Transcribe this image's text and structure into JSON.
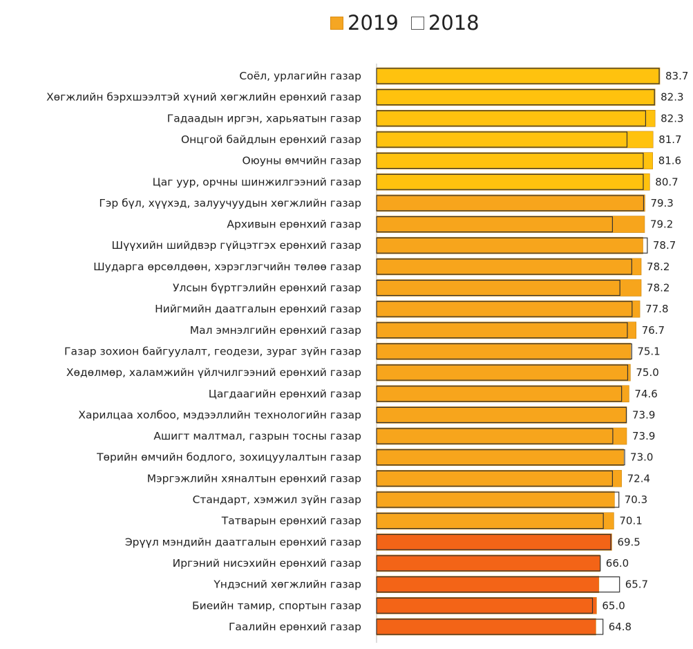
{
  "legend": {
    "items": [
      {
        "label": "2019",
        "color": "#F5A623",
        "style": "filled"
      },
      {
        "label": "2018",
        "color": "#ffffff",
        "style": "outline"
      }
    ],
    "placement": "top-center"
  },
  "chart_data": {
    "type": "bar",
    "orientation": "horizontal",
    "title": "",
    "xlabel": "",
    "ylabel": "",
    "xlim": [
      0,
      83.7
    ],
    "grid": false,
    "categories": [
      "Соёл, урлагийн газар",
      "Хөгжлийн бэрхшээлтэй хүний хөгжлийн ерөнхий газар",
      "Гадаадын иргэн, харьяатын газар",
      "Онцгой байдлын ерөнхий газар",
      "Оюуны өмчийн газар",
      "Цаг уур, орчны  шинжилгээний газар",
      "Гэр бүл, хүүхэд, залуучуудын хөгжлийн газар",
      "Архивын ерөнхий газар",
      "Шүүхийн шийдвэр гүйцэтгэх ерөнхий газар",
      "Шударга өрсөлдөөн, хэрэглэгчийн төлөө газар",
      "Улсын бүртгэлийн ерөнхий газар",
      "Нийгмийн даатгалын ерөнхий газар",
      "Мал эмнэлгийн ерөнхий газар",
      "Газар зохион байгуулалт, геодези, зураг зүйн газар",
      "Хөдөлмөр, халамжийн үйлчилгээний ерөнхий газар",
      "Цагдаагийн ерөнхий газар",
      "Харилцаа холбоо, мэдээллийн технологийн газар",
      "Ашигт малтмал, газрын тосны газар",
      "Төрийн өмчийн бодлого, зохицуулалтын газар",
      "Мэргэжлийн хяналтын ерөнхий газар",
      "Стандарт, хэмжил зүйн газар",
      "Татварын ерөнхий газар",
      "Эрүүл мэндийн даатгалын ерөнхий газар",
      "Иргэний нисэхийн ерөнхий газар",
      "Үндэсний хөгжлийн газар",
      "Биеийн тамир, спортын газар",
      "Гаалийн ерөнхий газар"
    ],
    "series": [
      {
        "name": "2019",
        "values": [
          83.7,
          82.3,
          82.3,
          81.7,
          81.6,
          80.7,
          79.3,
          79.2,
          78.7,
          78.2,
          78.2,
          77.8,
          76.7,
          75.1,
          75.0,
          74.6,
          73.9,
          73.9,
          73.0,
          72.4,
          70.3,
          70.1,
          69.5,
          66.0,
          65.7,
          65.0,
          64.8
        ],
        "value_labels": [
          "83.7",
          "82.3",
          "82.3",
          "81.7",
          "81.6",
          "80.7",
          "79.3",
          "79.2",
          "78.7",
          "78.2",
          "78.2",
          "77.8",
          "76.7",
          "75.1",
          "75.0",
          "74.6",
          "73.9",
          "73.9",
          "73.0",
          "72.4",
          "70.3",
          "70.1",
          "69.5",
          "66.0",
          "65.7",
          "65.0",
          "64.8"
        ],
        "colors": [
          "#FFC20E",
          "#FFC20E",
          "#FFC20E",
          "#FFC20E",
          "#FFC20E",
          "#FFC20E",
          "#F7A51C",
          "#F7A51C",
          "#F7A51C",
          "#F7A51C",
          "#F7A51C",
          "#F7A51C",
          "#F7A51C",
          "#F7A51C",
          "#F7A51C",
          "#F7A51C",
          "#F7A51C",
          "#F7A51C",
          "#F7A51C",
          "#F7A51C",
          "#F7A51C",
          "#F7A51C",
          "#F36417",
          "#F36417",
          "#F36417",
          "#F36417",
          "#F36417"
        ]
      },
      {
        "name": "2018",
        "values": [
          83.5,
          82.1,
          79.5,
          74.0,
          78.8,
          78.8,
          78.9,
          69.7,
          80.0,
          75.4,
          71.9,
          75.5,
          74.1,
          75.4,
          74.2,
          72.4,
          73.8,
          69.8,
          73.3,
          69.7,
          71.6,
          67.0,
          69.2,
          66.1,
          71.8,
          63.8,
          66.9
        ]
      }
    ]
  }
}
